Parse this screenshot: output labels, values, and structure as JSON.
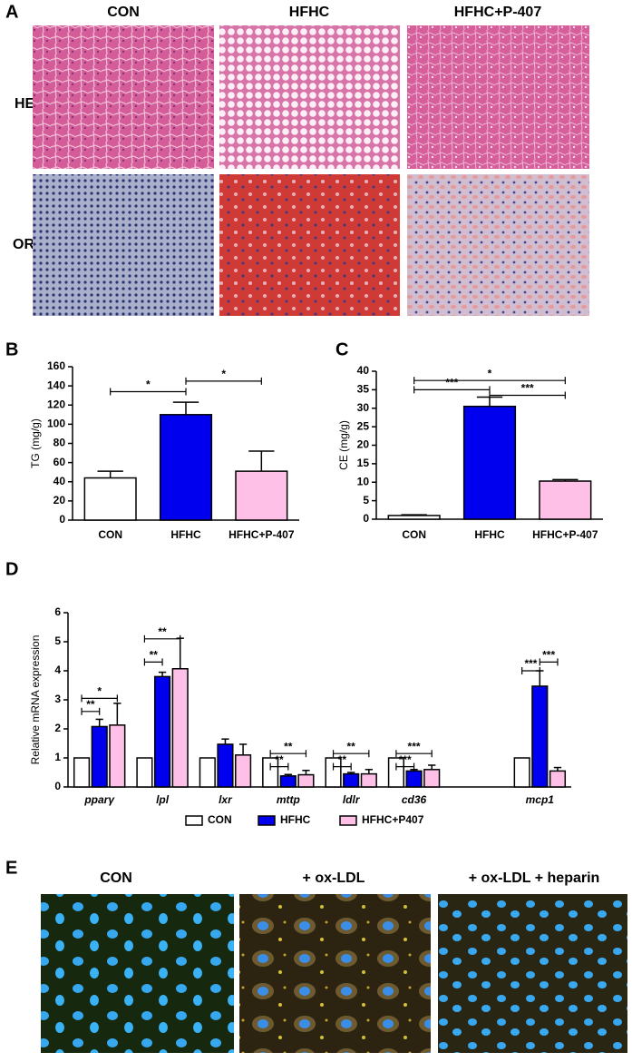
{
  "figure_a": {
    "label": "A",
    "columns": [
      "CON",
      "HFHC",
      "HFHC+P-407"
    ],
    "rows": [
      "HE",
      "OR"
    ]
  },
  "chart_data": [
    {
      "type": "bar",
      "panel_label": "B",
      "y_label": "TG (mg/g)",
      "categories": [
        "CON",
        "HFHC",
        "HFHC+P-407"
      ],
      "values": [
        44,
        110,
        51
      ],
      "errors": [
        7,
        13,
        21
      ],
      "colors": [
        "#ffffff",
        "#0000ee",
        "#ffc0e8"
      ],
      "ylim": [
        0,
        160
      ],
      "yticks": [
        0,
        20,
        40,
        60,
        80,
        100,
        120,
        140,
        160
      ],
      "significance": [
        {
          "from": 0,
          "to": 1,
          "label": "*",
          "level": 134
        },
        {
          "from": 1,
          "to": 2,
          "label": "*",
          "level": 145
        }
      ]
    },
    {
      "type": "bar",
      "panel_label": "C",
      "y_label": "CE (mg/g)",
      "categories": [
        "CON",
        "HFHC",
        "HFHC+P-407"
      ],
      "values": [
        1,
        30.5,
        10.3
      ],
      "errors": [
        0.2,
        2.5,
        0.4
      ],
      "colors": [
        "#ffffff",
        "#0000ee",
        "#ffc0e8"
      ],
      "ylim": [
        0,
        40
      ],
      "yticks": [
        0,
        5,
        10,
        15,
        20,
        25,
        30,
        35,
        40
      ],
      "significance": [
        {
          "from": 0,
          "to": 2,
          "label": "*",
          "level": 37.5
        },
        {
          "from": 0,
          "to": 1,
          "label": "***",
          "level": 35
        },
        {
          "from": 1,
          "to": 2,
          "label": "***",
          "level": 33.5
        }
      ]
    },
    {
      "type": "bar",
      "panel_label": "D",
      "y_label": "Relative mRNA expression",
      "categories": [
        "pparγ",
        "lpl",
        "lxr",
        "mttp",
        "ldlr",
        "cd36",
        null,
        "mcp1"
      ],
      "series": [
        {
          "name": "CON",
          "color": "#ffffff",
          "values": [
            1,
            1,
            1,
            1,
            1,
            1,
            null,
            1
          ],
          "errors": [
            0,
            0,
            0,
            0,
            0,
            0,
            null,
            0
          ]
        },
        {
          "name": "HFHC",
          "color": "#0000ee",
          "values": [
            2.08,
            3.8,
            1.47,
            0.38,
            0.45,
            0.55,
            null,
            3.47
          ],
          "errors": [
            0.25,
            0.15,
            0.18,
            0.05,
            0.05,
            0.05,
            null,
            0.53
          ]
        },
        {
          "name": "HFHC+P407",
          "color": "#ffc0e8",
          "values": [
            2.13,
            4.07,
            1.1,
            0.42,
            0.45,
            0.6,
            null,
            0.55
          ],
          "errors": [
            0.75,
            1.05,
            0.37,
            0.15,
            0.15,
            0.15,
            null,
            0.12
          ]
        }
      ],
      "ylim": [
        0,
        6
      ],
      "yticks": [
        0,
        1,
        2,
        3,
        4,
        5,
        6
      ],
      "significance": [
        {
          "group": 0,
          "from": 0,
          "to": 1,
          "label": "**",
          "level": 2.6
        },
        {
          "group": 0,
          "from": 0,
          "to": 2,
          "label": "*",
          "level": 3.05
        },
        {
          "group": 1,
          "from": 0,
          "to": 1,
          "label": "**",
          "level": 4.3
        },
        {
          "group": 1,
          "from": 0,
          "to": 2,
          "label": "**",
          "level": 5.1
        },
        {
          "group": 3,
          "from": 0,
          "to": 1,
          "label": "**",
          "level": 0.7
        },
        {
          "group": 3,
          "from": 0,
          "to": 2,
          "label": "**",
          "level": 1.15
        },
        {
          "group": 4,
          "from": 0,
          "to": 1,
          "label": "**",
          "level": 0.7
        },
        {
          "group": 4,
          "from": 0,
          "to": 2,
          "label": "**",
          "level": 1.15
        },
        {
          "group": 5,
          "from": 0,
          "to": 1,
          "label": "***",
          "level": 0.7
        },
        {
          "group": 5,
          "from": 0,
          "to": 2,
          "label": "***",
          "level": 1.15
        },
        {
          "group": 7,
          "from": 0,
          "to": 1,
          "label": "***",
          "level": 4.0
        },
        {
          "group": 7,
          "from": 1,
          "to": 2,
          "label": "***",
          "level": 4.3
        }
      ]
    }
  ],
  "figure_e": {
    "label": "E",
    "columns": [
      "CON",
      "+ ox-LDL",
      "+ ox-LDL + heparin"
    ]
  }
}
